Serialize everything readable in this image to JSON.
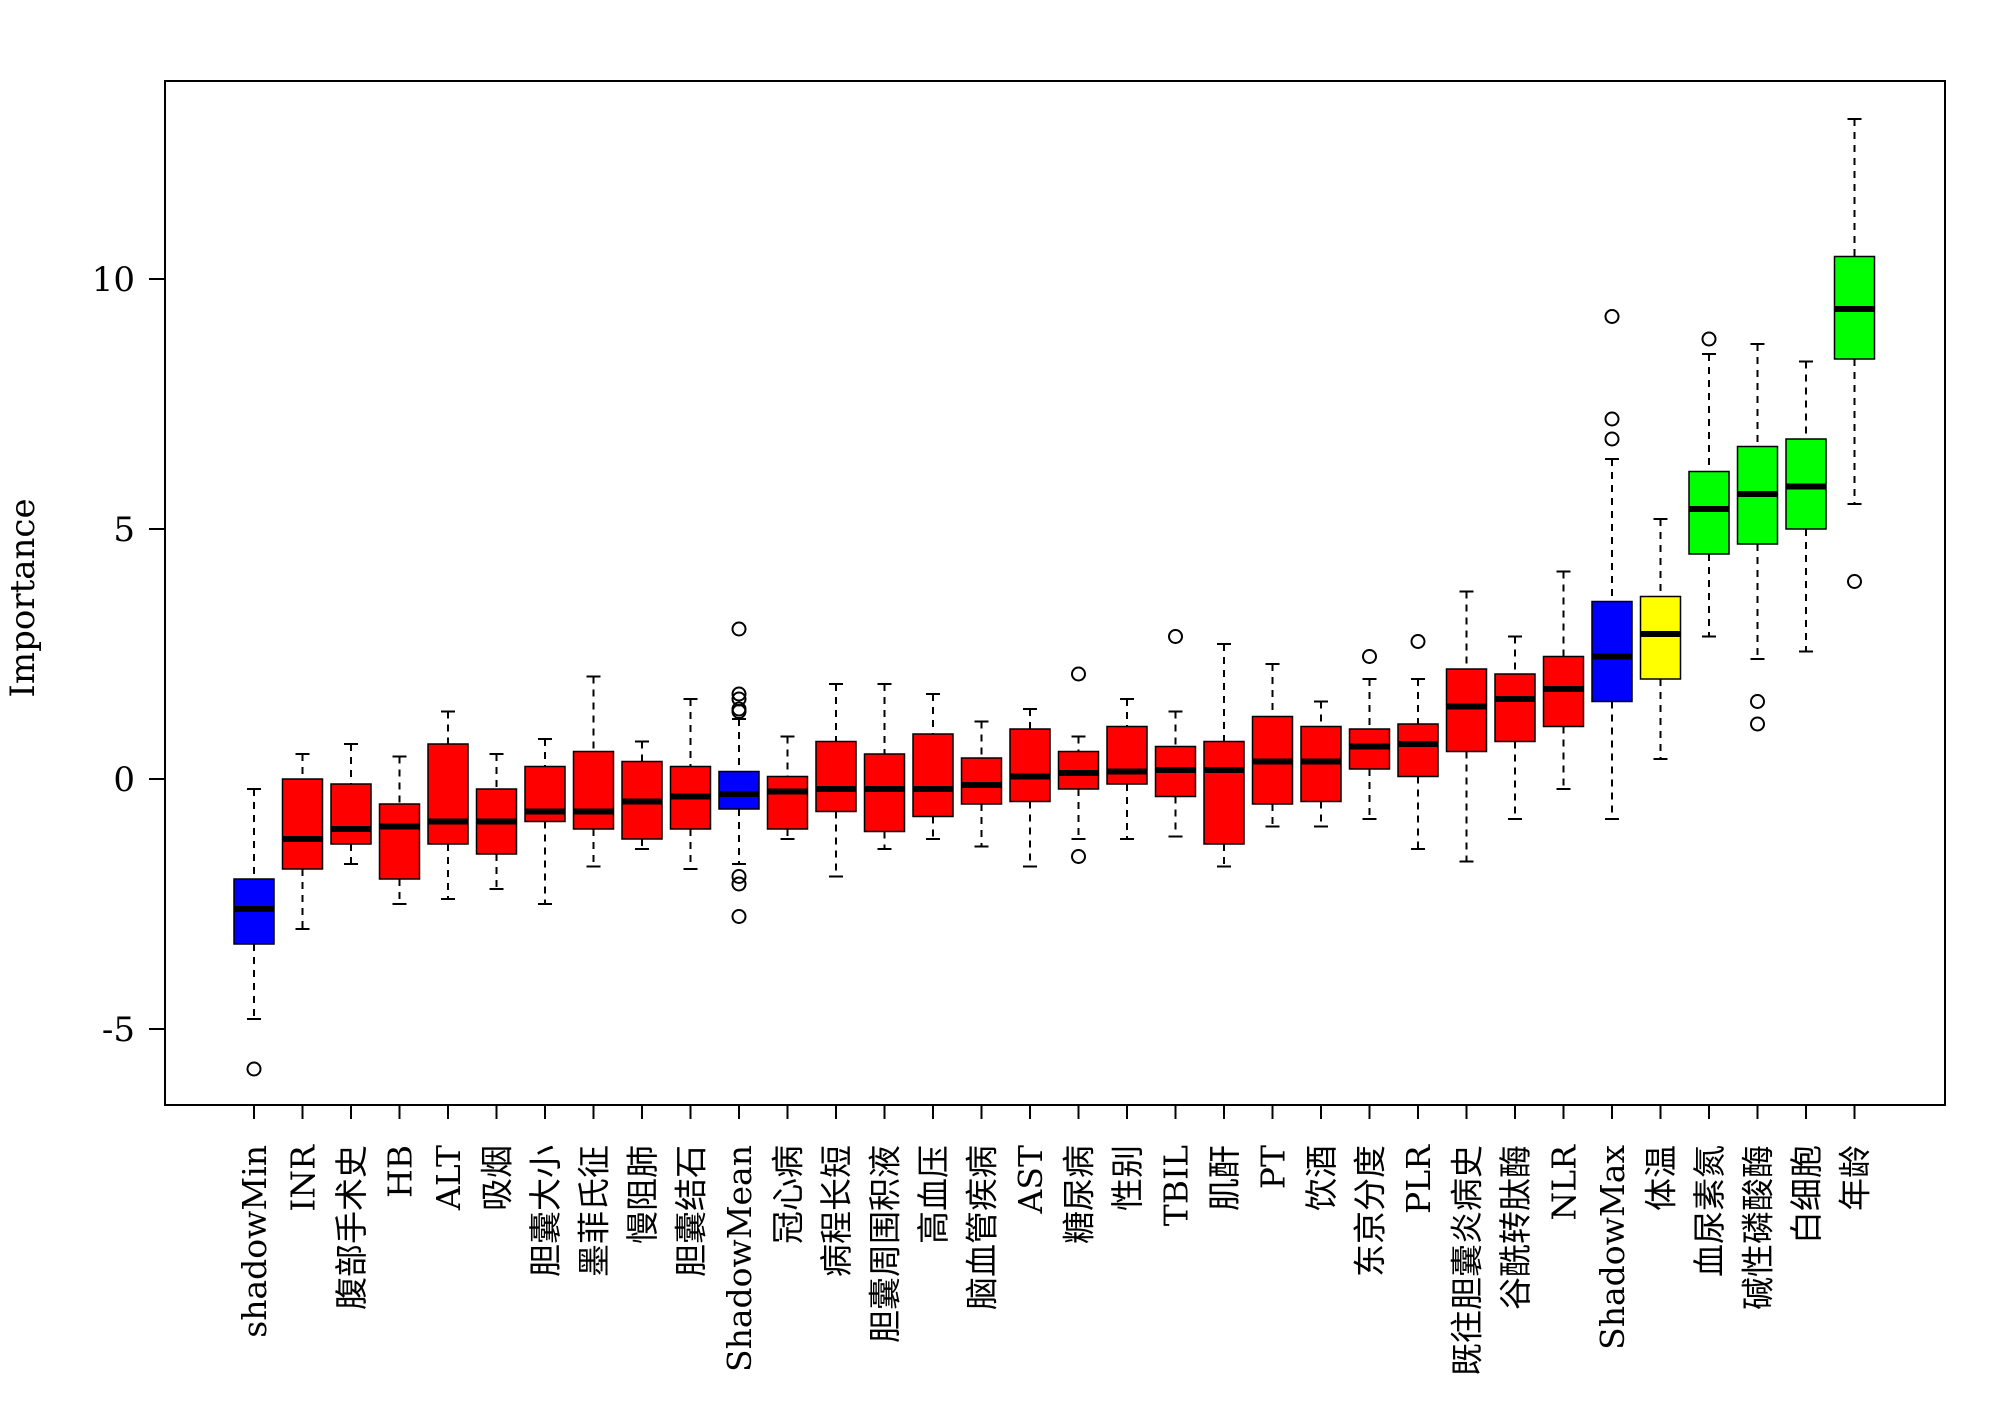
{
  "chart_data": {
    "type": "boxplot",
    "title": "",
    "xlabel": "",
    "ylabel": "Importance",
    "ylim": [
      -6.5,
      14
    ],
    "yticks": [
      -5,
      0,
      5,
      10
    ],
    "colors": {
      "shadow": "#0000ff",
      "rejected": "#ff0000",
      "tentative": "#ffff00",
      "confirmed": "#00ff00"
    },
    "boxes": [
      {
        "label": "shadowMin",
        "status": "shadow",
        "lw": -4.8,
        "q1": -3.3,
        "med": -2.6,
        "q3": -2.0,
        "hw": -0.2,
        "out": [
          -5.8
        ]
      },
      {
        "label": "INR",
        "status": "rejected",
        "lw": -3.0,
        "q1": -1.8,
        "med": -1.2,
        "q3": 0.0,
        "hw": 0.5,
        "out": []
      },
      {
        "label": "腹部手术史",
        "status": "rejected",
        "lw": -1.7,
        "q1": -1.3,
        "med": -1.0,
        "q3": -0.1,
        "hw": 0.7,
        "out": []
      },
      {
        "label": "HB",
        "status": "rejected",
        "lw": -2.5,
        "q1": -2.0,
        "med": -0.95,
        "q3": -0.5,
        "hw": 0.45,
        "out": []
      },
      {
        "label": "ALT",
        "status": "rejected",
        "lw": -2.4,
        "q1": -1.3,
        "med": -0.85,
        "q3": 0.7,
        "hw": 1.35,
        "out": []
      },
      {
        "label": "吸烟",
        "status": "rejected",
        "lw": -2.2,
        "q1": -1.5,
        "med": -0.85,
        "q3": -0.2,
        "hw": 0.5,
        "out": []
      },
      {
        "label": "胆囊大小",
        "status": "rejected",
        "lw": -2.5,
        "q1": -0.85,
        "med": -0.65,
        "q3": 0.25,
        "hw": 0.8,
        "out": []
      },
      {
        "label": "墨菲氏征",
        "status": "rejected",
        "lw": -1.75,
        "q1": -1.0,
        "med": -0.65,
        "q3": 0.55,
        "hw": 2.05,
        "out": []
      },
      {
        "label": "慢阻肺",
        "status": "rejected",
        "lw": -1.4,
        "q1": -1.2,
        "med": -0.45,
        "q3": 0.35,
        "hw": 0.75,
        "out": []
      },
      {
        "label": "胆囊结石",
        "status": "rejected",
        "lw": -1.8,
        "q1": -1.0,
        "med": -0.35,
        "q3": 0.25,
        "hw": 1.6,
        "out": []
      },
      {
        "label": "ShadowMean",
        "status": "shadow",
        "lw": -1.7,
        "q1": -0.6,
        "med": -0.3,
        "q3": 0.15,
        "hw": 1.2,
        "out": [
          3.0,
          1.7,
          1.6,
          1.4,
          1.35,
          -1.95,
          -2.1,
          -2.75
        ]
      },
      {
        "label": "冠心病",
        "status": "rejected",
        "lw": -1.2,
        "q1": -1.0,
        "med": -0.25,
        "q3": 0.05,
        "hw": 0.85,
        "out": []
      },
      {
        "label": "病程长短",
        "status": "rejected",
        "lw": -1.95,
        "q1": -0.65,
        "med": -0.2,
        "q3": 0.75,
        "hw": 1.9,
        "out": []
      },
      {
        "label": "胆囊周围积液",
        "status": "rejected",
        "lw": -1.4,
        "q1": -1.05,
        "med": -0.2,
        "q3": 0.5,
        "hw": 1.9,
        "out": []
      },
      {
        "label": "高血压",
        "status": "rejected",
        "lw": -1.2,
        "q1": -0.75,
        "med": -0.2,
        "q3": 0.9,
        "hw": 1.7,
        "out": []
      },
      {
        "label": "脑血管疾病",
        "status": "rejected",
        "lw": -1.35,
        "q1": -0.5,
        "med": -0.12,
        "q3": 0.42,
        "hw": 1.15,
        "out": []
      },
      {
        "label": "AST",
        "status": "rejected",
        "lw": -1.75,
        "q1": -0.45,
        "med": 0.05,
        "q3": 1.0,
        "hw": 1.4,
        "out": []
      },
      {
        "label": "糖尿病",
        "status": "rejected",
        "lw": -1.2,
        "q1": -0.2,
        "med": 0.12,
        "q3": 0.55,
        "hw": 0.85,
        "out": [
          2.1,
          -1.55
        ]
      },
      {
        "label": "性别",
        "status": "rejected",
        "lw": -1.2,
        "q1": -0.1,
        "med": 0.15,
        "q3": 1.05,
        "hw": 1.6,
        "out": []
      },
      {
        "label": "TBIL",
        "status": "rejected",
        "lw": -1.15,
        "q1": -0.35,
        "med": 0.18,
        "q3": 0.65,
        "hw": 1.35,
        "out": [
          2.85
        ]
      },
      {
        "label": "肌酐",
        "status": "rejected",
        "lw": -1.75,
        "q1": -1.3,
        "med": 0.18,
        "q3": 0.75,
        "hw": 2.7,
        "out": []
      },
      {
        "label": "PT",
        "status": "rejected",
        "lw": -0.95,
        "q1": -0.5,
        "med": 0.35,
        "q3": 1.25,
        "hw": 2.3,
        "out": []
      },
      {
        "label": "饮酒",
        "status": "rejected",
        "lw": -0.95,
        "q1": -0.45,
        "med": 0.35,
        "q3": 1.05,
        "hw": 1.55,
        "out": []
      },
      {
        "label": "东京分度",
        "status": "rejected",
        "lw": -0.8,
        "q1": 0.2,
        "med": 0.65,
        "q3": 1.0,
        "hw": 2.0,
        "out": [
          2.45
        ]
      },
      {
        "label": "PLR",
        "status": "rejected",
        "lw": -1.4,
        "q1": 0.05,
        "med": 0.7,
        "q3": 1.1,
        "hw": 2.0,
        "out": [
          2.75
        ]
      },
      {
        "label": "既往胆囊炎病史",
        "status": "rejected",
        "lw": -1.65,
        "q1": 0.55,
        "med": 1.45,
        "q3": 2.2,
        "hw": 3.75,
        "out": []
      },
      {
        "label": "谷酰转肽酶",
        "status": "rejected",
        "lw": -0.8,
        "q1": 0.75,
        "med": 1.6,
        "q3": 2.1,
        "hw": 2.85,
        "out": []
      },
      {
        "label": "NLR",
        "status": "rejected",
        "lw": -0.2,
        "q1": 1.05,
        "med": 1.8,
        "q3": 2.45,
        "hw": 4.15,
        "out": []
      },
      {
        "label": "ShadowMax",
        "status": "shadow",
        "lw": -0.8,
        "q1": 1.55,
        "med": 2.45,
        "q3": 3.55,
        "hw": 6.4,
        "out": [
          9.25,
          7.2,
          6.8
        ]
      },
      {
        "label": "体温",
        "status": "tentative",
        "lw": 0.4,
        "q1": 2.0,
        "med": 2.9,
        "q3": 3.65,
        "hw": 5.2,
        "out": []
      },
      {
        "label": "血尿素氮",
        "status": "confirmed",
        "lw": 2.85,
        "q1": 4.5,
        "med": 5.4,
        "q3": 6.15,
        "hw": 8.5,
        "out": [
          8.8
        ]
      },
      {
        "label": "碱性磷酸酶",
        "status": "confirmed",
        "lw": 2.4,
        "q1": 4.7,
        "med": 5.7,
        "q3": 6.65,
        "hw": 8.7,
        "out": [
          1.55,
          1.1
        ]
      },
      {
        "label": "白细胞",
        "status": "confirmed",
        "lw": 2.55,
        "q1": 5.0,
        "med": 5.85,
        "q3": 6.8,
        "hw": 8.35,
        "out": []
      },
      {
        "label": "年龄",
        "status": "confirmed",
        "lw": 5.5,
        "q1": 8.4,
        "med": 9.4,
        "q3": 10.45,
        "hw": 13.2,
        "out": [
          3.95
        ]
      }
    ]
  }
}
